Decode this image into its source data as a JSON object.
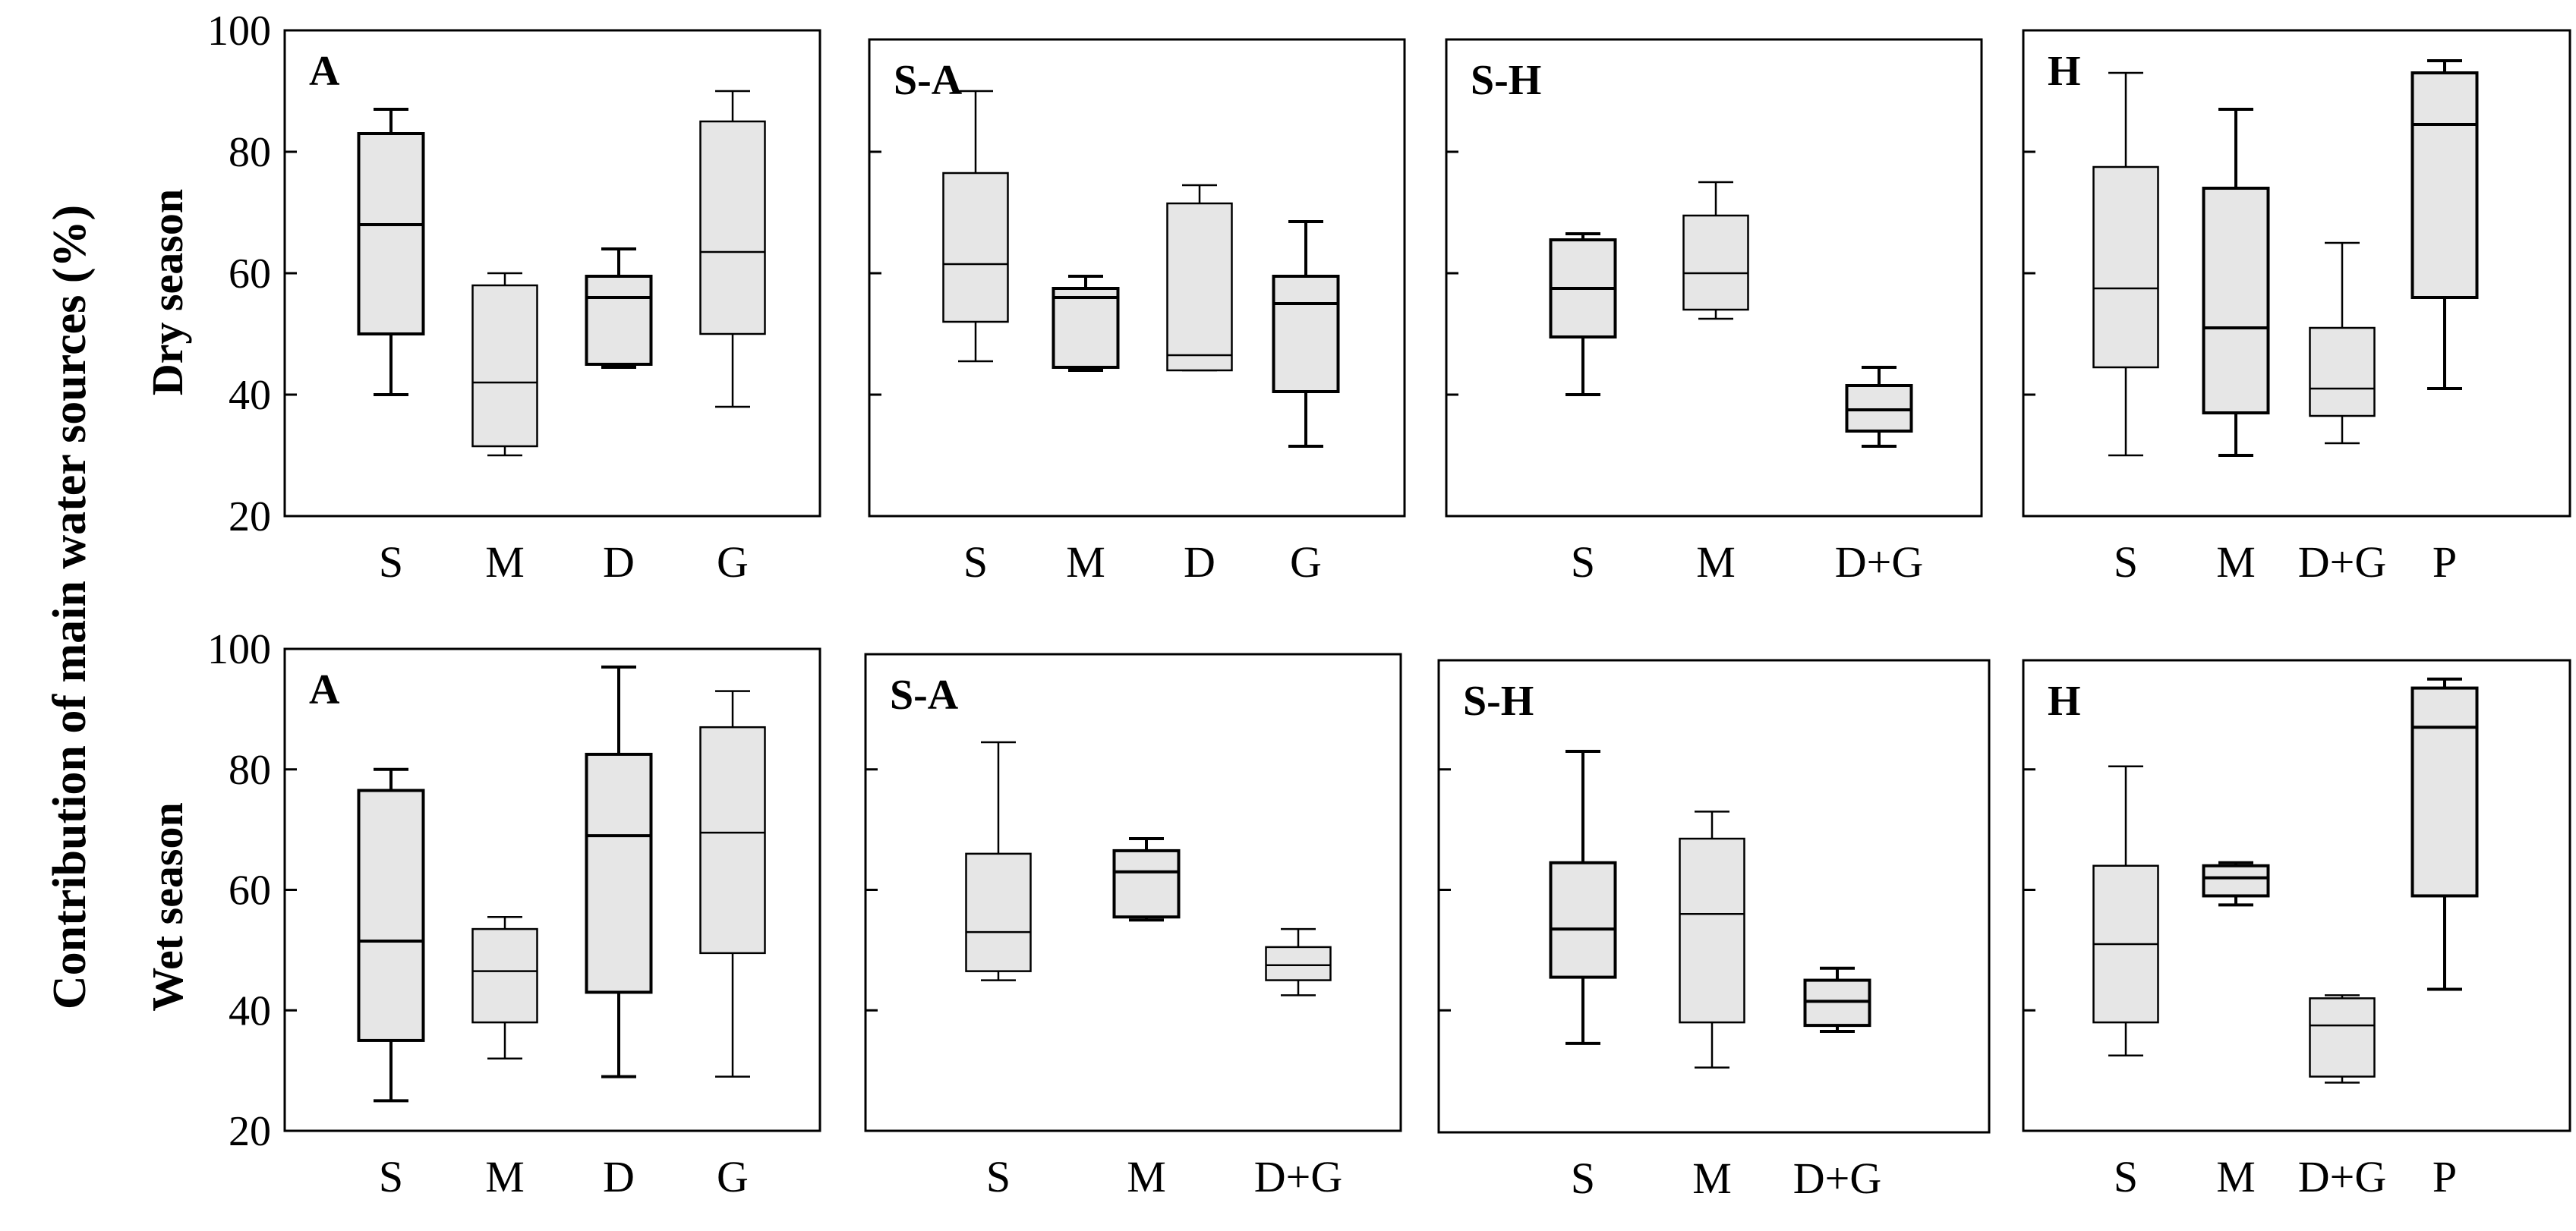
{
  "figure": {
    "y_axis_title": "Contribution of main water sources (%)",
    "row_labels": [
      "Dry season",
      "Wet season"
    ],
    "y_ticks": [
      20,
      40,
      60,
      80,
      100
    ]
  },
  "chart_data": [
    {
      "type": "box",
      "season": "Dry season",
      "title": "A",
      "ylim": [
        20,
        100
      ],
      "categories": [
        "S",
        "M",
        "D",
        "G"
      ],
      "boxes": [
        {
          "min": 40,
          "q1": 50,
          "median": 68,
          "q3": 83,
          "max": 87
        },
        {
          "min": 30,
          "q1": 31.5,
          "median": 42,
          "q3": 58,
          "max": 60
        },
        {
          "min": 44.5,
          "q1": 45,
          "median": 56,
          "q3": 59.5,
          "max": 64
        },
        {
          "min": 38,
          "q1": 50,
          "median": 63.5,
          "q3": 85,
          "max": 90
        }
      ]
    },
    {
      "type": "box",
      "season": "Dry season",
      "title": "S-A",
      "ylim": [
        20,
        100
      ],
      "categories": [
        "S",
        "M",
        "D",
        "G"
      ],
      "boxes": [
        {
          "min": 45.5,
          "q1": 52,
          "median": 61.5,
          "q3": 76.5,
          "max": 90
        },
        {
          "min": 44,
          "q1": 44.5,
          "median": 56,
          "q3": 57.5,
          "max": 59.5
        },
        {
          "min": 44,
          "q1": 44,
          "median": 46.5,
          "q3": 71.5,
          "max": 74.5
        },
        {
          "min": 31.5,
          "q1": 40.5,
          "median": 55,
          "q3": 59.5,
          "max": 68.5
        }
      ]
    },
    {
      "type": "box",
      "season": "Dry season",
      "title": "S-H",
      "ylim": [
        20,
        100
      ],
      "categories": [
        "S",
        "M",
        "D+G"
      ],
      "boxes": [
        {
          "min": 40,
          "q1": 49.5,
          "median": 57.5,
          "q3": 65.5,
          "max": 66.5
        },
        {
          "min": 52.5,
          "q1": 54,
          "median": 60,
          "q3": 69.5,
          "max": 75
        },
        {
          "min": 31.5,
          "q1": 34,
          "median": 37.5,
          "q3": 41.5,
          "max": 44.5
        }
      ]
    },
    {
      "type": "box",
      "season": "Dry season",
      "title": "H",
      "ylim": [
        20,
        100
      ],
      "categories": [
        "S",
        "M",
        "D+G",
        "P"
      ],
      "boxes": [
        {
          "min": 30,
          "q1": 44.5,
          "median": 57.5,
          "q3": 77.5,
          "max": 93
        },
        {
          "min": 30,
          "q1": 37,
          "median": 51,
          "q3": 74,
          "max": 87
        },
        {
          "min": 32,
          "q1": 36.5,
          "median": 41,
          "q3": 51,
          "max": 65
        },
        {
          "min": 41,
          "q1": 56,
          "median": 84.5,
          "q3": 93,
          "max": 95
        }
      ]
    },
    {
      "type": "box",
      "season": "Wet season",
      "title": "A",
      "ylim": [
        20,
        100
      ],
      "categories": [
        "S",
        "M",
        "D",
        "G"
      ],
      "boxes": [
        {
          "min": 25,
          "q1": 35,
          "median": 51.5,
          "q3": 76.5,
          "max": 80
        },
        {
          "min": 32,
          "q1": 38,
          "median": 46.5,
          "q3": 53.5,
          "max": 55.5
        },
        {
          "min": 29,
          "q1": 43,
          "median": 69,
          "q3": 82.5,
          "max": 97
        },
        {
          "min": 29,
          "q1": 49.5,
          "median": 69.5,
          "q3": 87,
          "max": 93
        }
      ]
    },
    {
      "type": "box",
      "season": "Wet season",
      "title": "S-A",
      "ylim": [
        20,
        100
      ],
      "categories": [
        "S",
        "M",
        "D+G"
      ],
      "boxes": [
        {
          "min": 45,
          "q1": 46.5,
          "median": 53,
          "q3": 66,
          "max": 84.5
        },
        {
          "min": 55,
          "q1": 55.5,
          "median": 63,
          "q3": 66.5,
          "max": 68.5
        },
        {
          "min": 42.5,
          "q1": 45,
          "median": 47.5,
          "q3": 50.5,
          "max": 53.5
        }
      ]
    },
    {
      "type": "box",
      "season": "Wet season",
      "title": "S-H",
      "ylim": [
        20,
        100
      ],
      "categories": [
        "S",
        "M",
        "D+G"
      ],
      "boxes": [
        {
          "min": 34.5,
          "q1": 45.5,
          "median": 53.5,
          "q3": 64.5,
          "max": 83
        },
        {
          "min": 30.5,
          "q1": 38,
          "median": 56,
          "q3": 68.5,
          "max": 73
        },
        {
          "min": 36.5,
          "q1": 37.5,
          "median": 41.5,
          "q3": 45,
          "max": 47
        }
      ]
    },
    {
      "type": "box",
      "season": "Wet season",
      "title": "H",
      "ylim": [
        20,
        100
      ],
      "categories": [
        "S",
        "M",
        "D+G",
        "P"
      ],
      "boxes": [
        {
          "min": 32.5,
          "q1": 38,
          "median": 51,
          "q3": 64,
          "max": 80.5
        },
        {
          "min": 57.5,
          "q1": 59,
          "median": 62,
          "q3": 64,
          "max": 64.5
        },
        {
          "min": 28,
          "q1": 29,
          "median": 37.5,
          "q3": 42,
          "max": 42.5
        },
        {
          "min": 43.5,
          "q1": 59,
          "median": 87,
          "q3": 93.5,
          "max": 95
        }
      ]
    }
  ]
}
